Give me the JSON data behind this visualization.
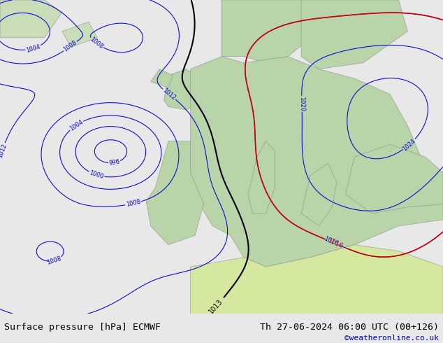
{
  "title_left": "Surface pressure [hPa] ECMWF",
  "title_right": "Th 27-06-2024 06:00 UTC (00+126)",
  "credit": "©weatheronline.co.uk",
  "sea_color": "#d8e4d8",
  "land_color": "#b8d4a8",
  "land_color2": "#c8ddb8",
  "africa_color": "#d4e8a0",
  "fig_bg_color": "#e8e8e8",
  "bottom_bar_color": "#e0e0e0",
  "title_fontsize": 9.5,
  "credit_color": "#0000cc",
  "blue_contour_color": "#0000dd",
  "red_contour_color": "#cc0000",
  "black_contour_color": "#000000"
}
